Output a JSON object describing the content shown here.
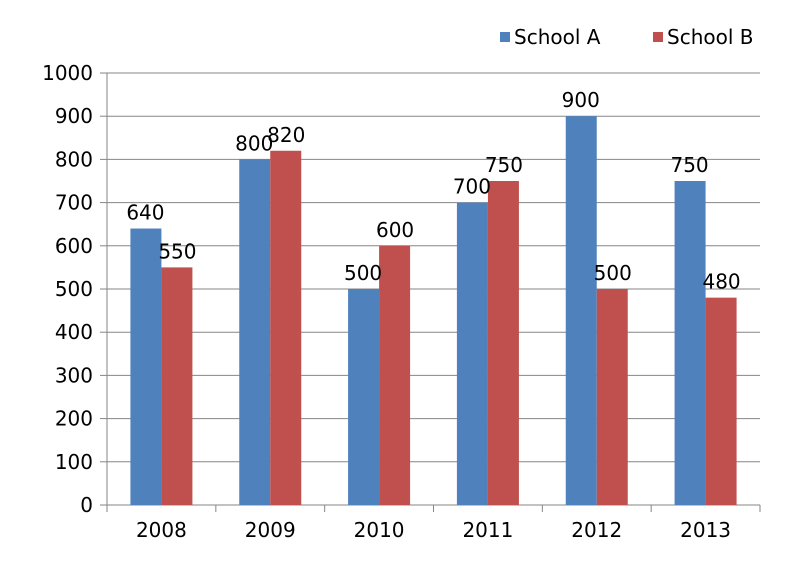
{
  "chart_data": {
    "type": "bar",
    "categories": [
      "2008",
      "2009",
      "2010",
      "2011",
      "2012",
      "2013"
    ],
    "series": [
      {
        "name": "School A",
        "values": [
          640,
          800,
          500,
          700,
          900,
          750
        ],
        "color": "#4F81BD"
      },
      {
        "name": "School B",
        "values": [
          550,
          820,
          600,
          750,
          500,
          480
        ],
        "color": "#C0504D"
      }
    ],
    "ylim": [
      0,
      1000
    ],
    "yticks": [
      0,
      100,
      200,
      300,
      400,
      500,
      600,
      700,
      800,
      900,
      1000
    ],
    "grid": true,
    "legend_position": "top-right",
    "data_labels": true
  }
}
